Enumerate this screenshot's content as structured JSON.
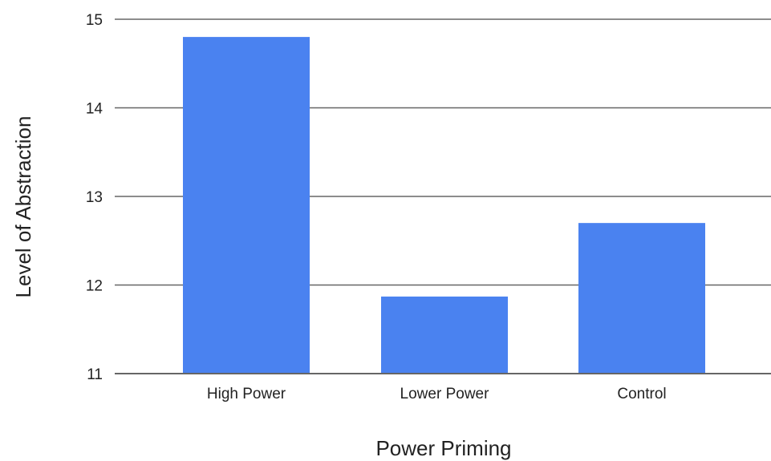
{
  "chart_data": {
    "type": "bar",
    "categories": [
      "High Power",
      "Lower Power",
      "Control"
    ],
    "values": [
      14.8,
      11.87,
      12.7
    ],
    "xlabel": "Power Priming",
    "ylabel": "Level of Abstraction",
    "ylim": [
      11,
      15
    ],
    "yticks": [
      11,
      12,
      13,
      14,
      15
    ],
    "grid": true,
    "legend": "none",
    "colors": {
      "bar": "#4a82f0",
      "grid": "#666666"
    }
  }
}
